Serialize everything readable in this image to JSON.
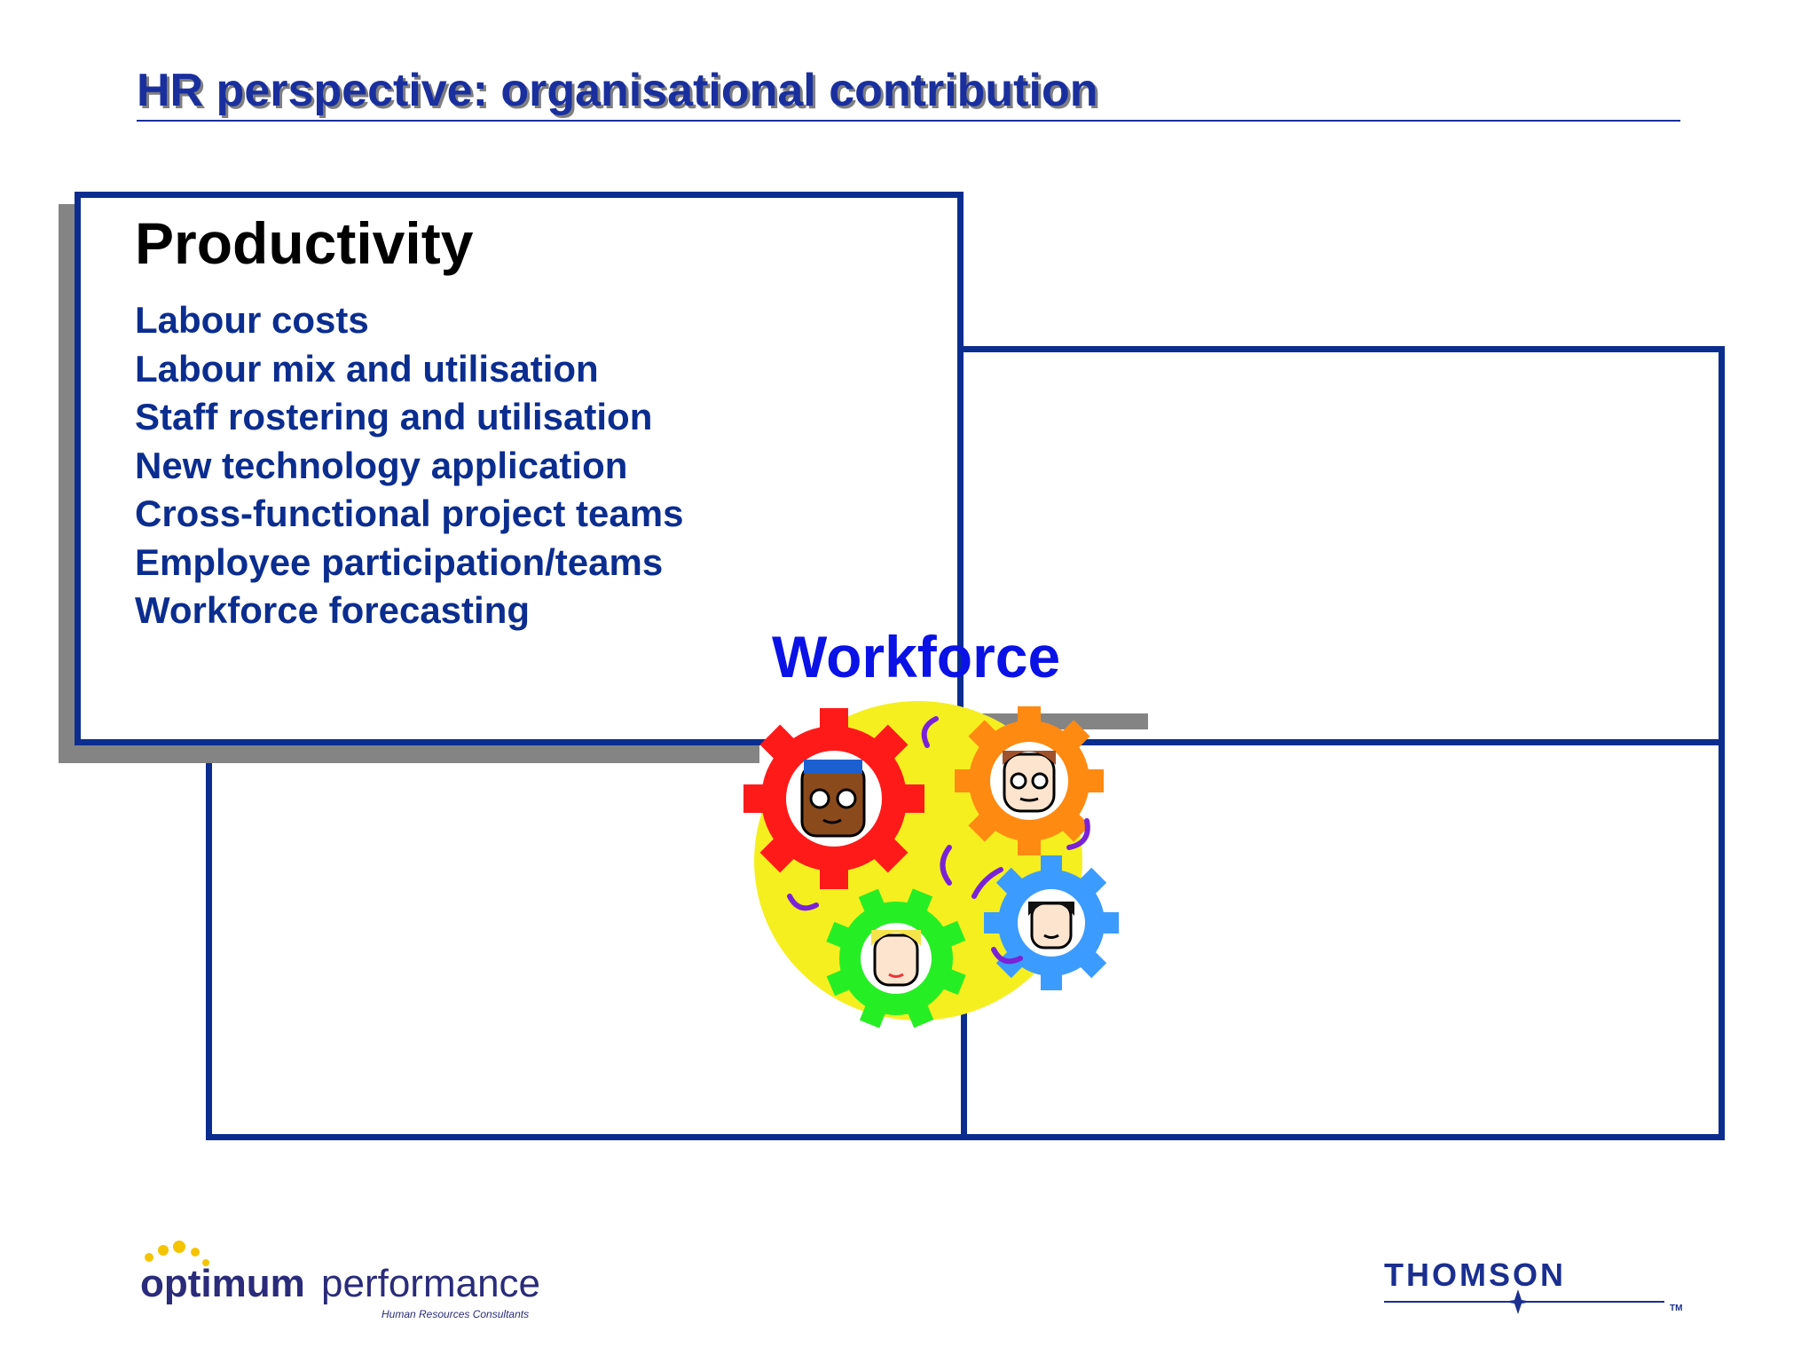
{
  "slide": {
    "title": "HR perspective: organisational contribution"
  },
  "productivity": {
    "heading": "Productivity",
    "items": [
      "Labour costs",
      "Labour mix and utilisation",
      "Staff rostering and utilisation",
      "New technology application",
      "Cross-functional project teams",
      "Employee participation/teams",
      "Workforce forecasting"
    ]
  },
  "center": {
    "label": "Workforce",
    "icon": "workforce-gears-icon"
  },
  "logos": {
    "left_primary": "optimum",
    "left_secondary": "performance",
    "left_tagline": "Human Resources Consultants",
    "right_name": "THOMSON",
    "right_mark": "TM"
  },
  "colors": {
    "frame_blue": "#0b2d8f",
    "title_blue": "#1a2f9e",
    "workforce_blue": "#0a12e6",
    "shadow_gray": "#848484"
  }
}
